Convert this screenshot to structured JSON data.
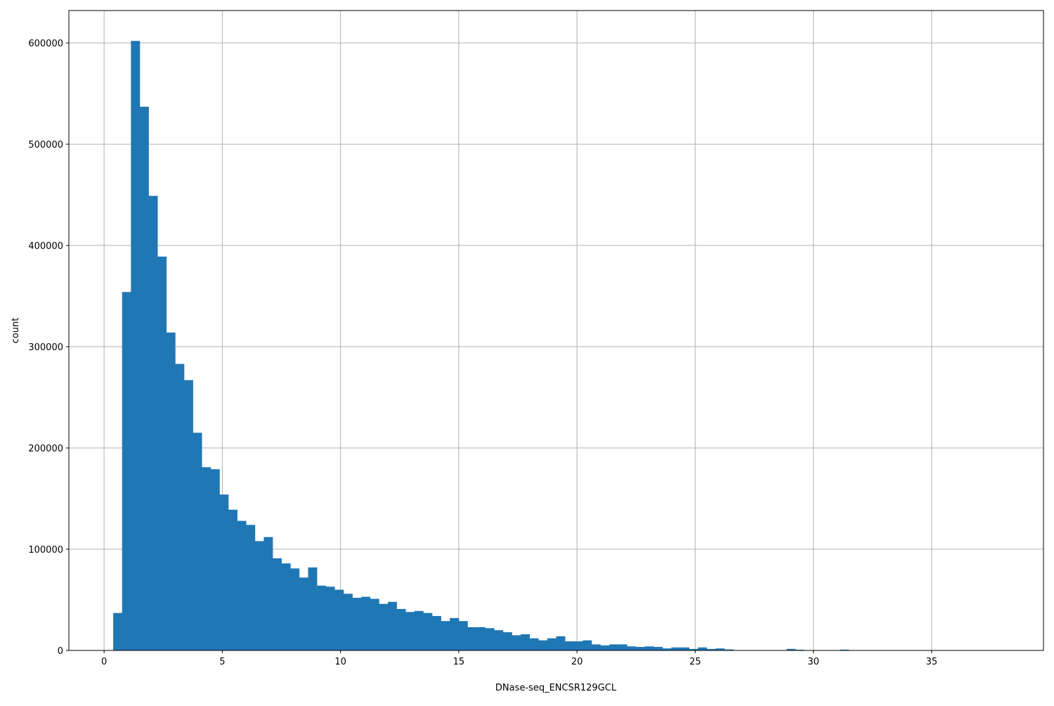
{
  "chart_data": {
    "type": "bar",
    "subtype": "histogram",
    "title": "",
    "xlabel": "DNase-seq_ENCSR129GCL",
    "ylabel": "count",
    "xlim": [
      -1.49,
      39.73
    ],
    "ylim": [
      0,
      632000
    ],
    "grid": true,
    "bar_color": "#1f77b4",
    "bin_start": 0.386,
    "bin_width": 0.3747,
    "values": [
      37000,
      354000,
      602000,
      537000,
      449000,
      389000,
      314000,
      283000,
      267000,
      215000,
      181000,
      179000,
      154000,
      139000,
      128000,
      124000,
      108000,
      112000,
      91000,
      86000,
      81000,
      72000,
      82000,
      64000,
      63000,
      60000,
      56000,
      52000,
      53000,
      51000,
      46000,
      48000,
      41000,
      38000,
      39000,
      37000,
      34000,
      29000,
      32000,
      29000,
      23000,
      23000,
      22000,
      20000,
      18000,
      15000,
      16000,
      12000,
      10000,
      12000,
      14000,
      9000,
      9000,
      10000,
      6000,
      5000,
      6000,
      6000,
      4000,
      3500,
      4000,
      3500,
      2000,
      3000,
      3000,
      1500,
      3000,
      1500,
      2000,
      1000,
      200,
      200,
      200,
      200,
      200,
      200,
      1500,
      700,
      200,
      200,
      200,
      200,
      800,
      100,
      100,
      100,
      100,
      100,
      100,
      100,
      100,
      100,
      100,
      100,
      100,
      100,
      100,
      100,
      100,
      100
    ],
    "xticks": [
      "0",
      "5",
      "10",
      "15",
      "20",
      "25",
      "30",
      "35"
    ],
    "xtick_values": [
      0,
      5,
      10,
      15,
      20,
      25,
      30,
      35
    ],
    "yticks": [
      "0",
      "100000",
      "200000",
      "300000",
      "400000",
      "500000",
      "600000"
    ],
    "ytick_values": [
      0,
      100000,
      200000,
      300000,
      400000,
      500000,
      600000
    ]
  }
}
